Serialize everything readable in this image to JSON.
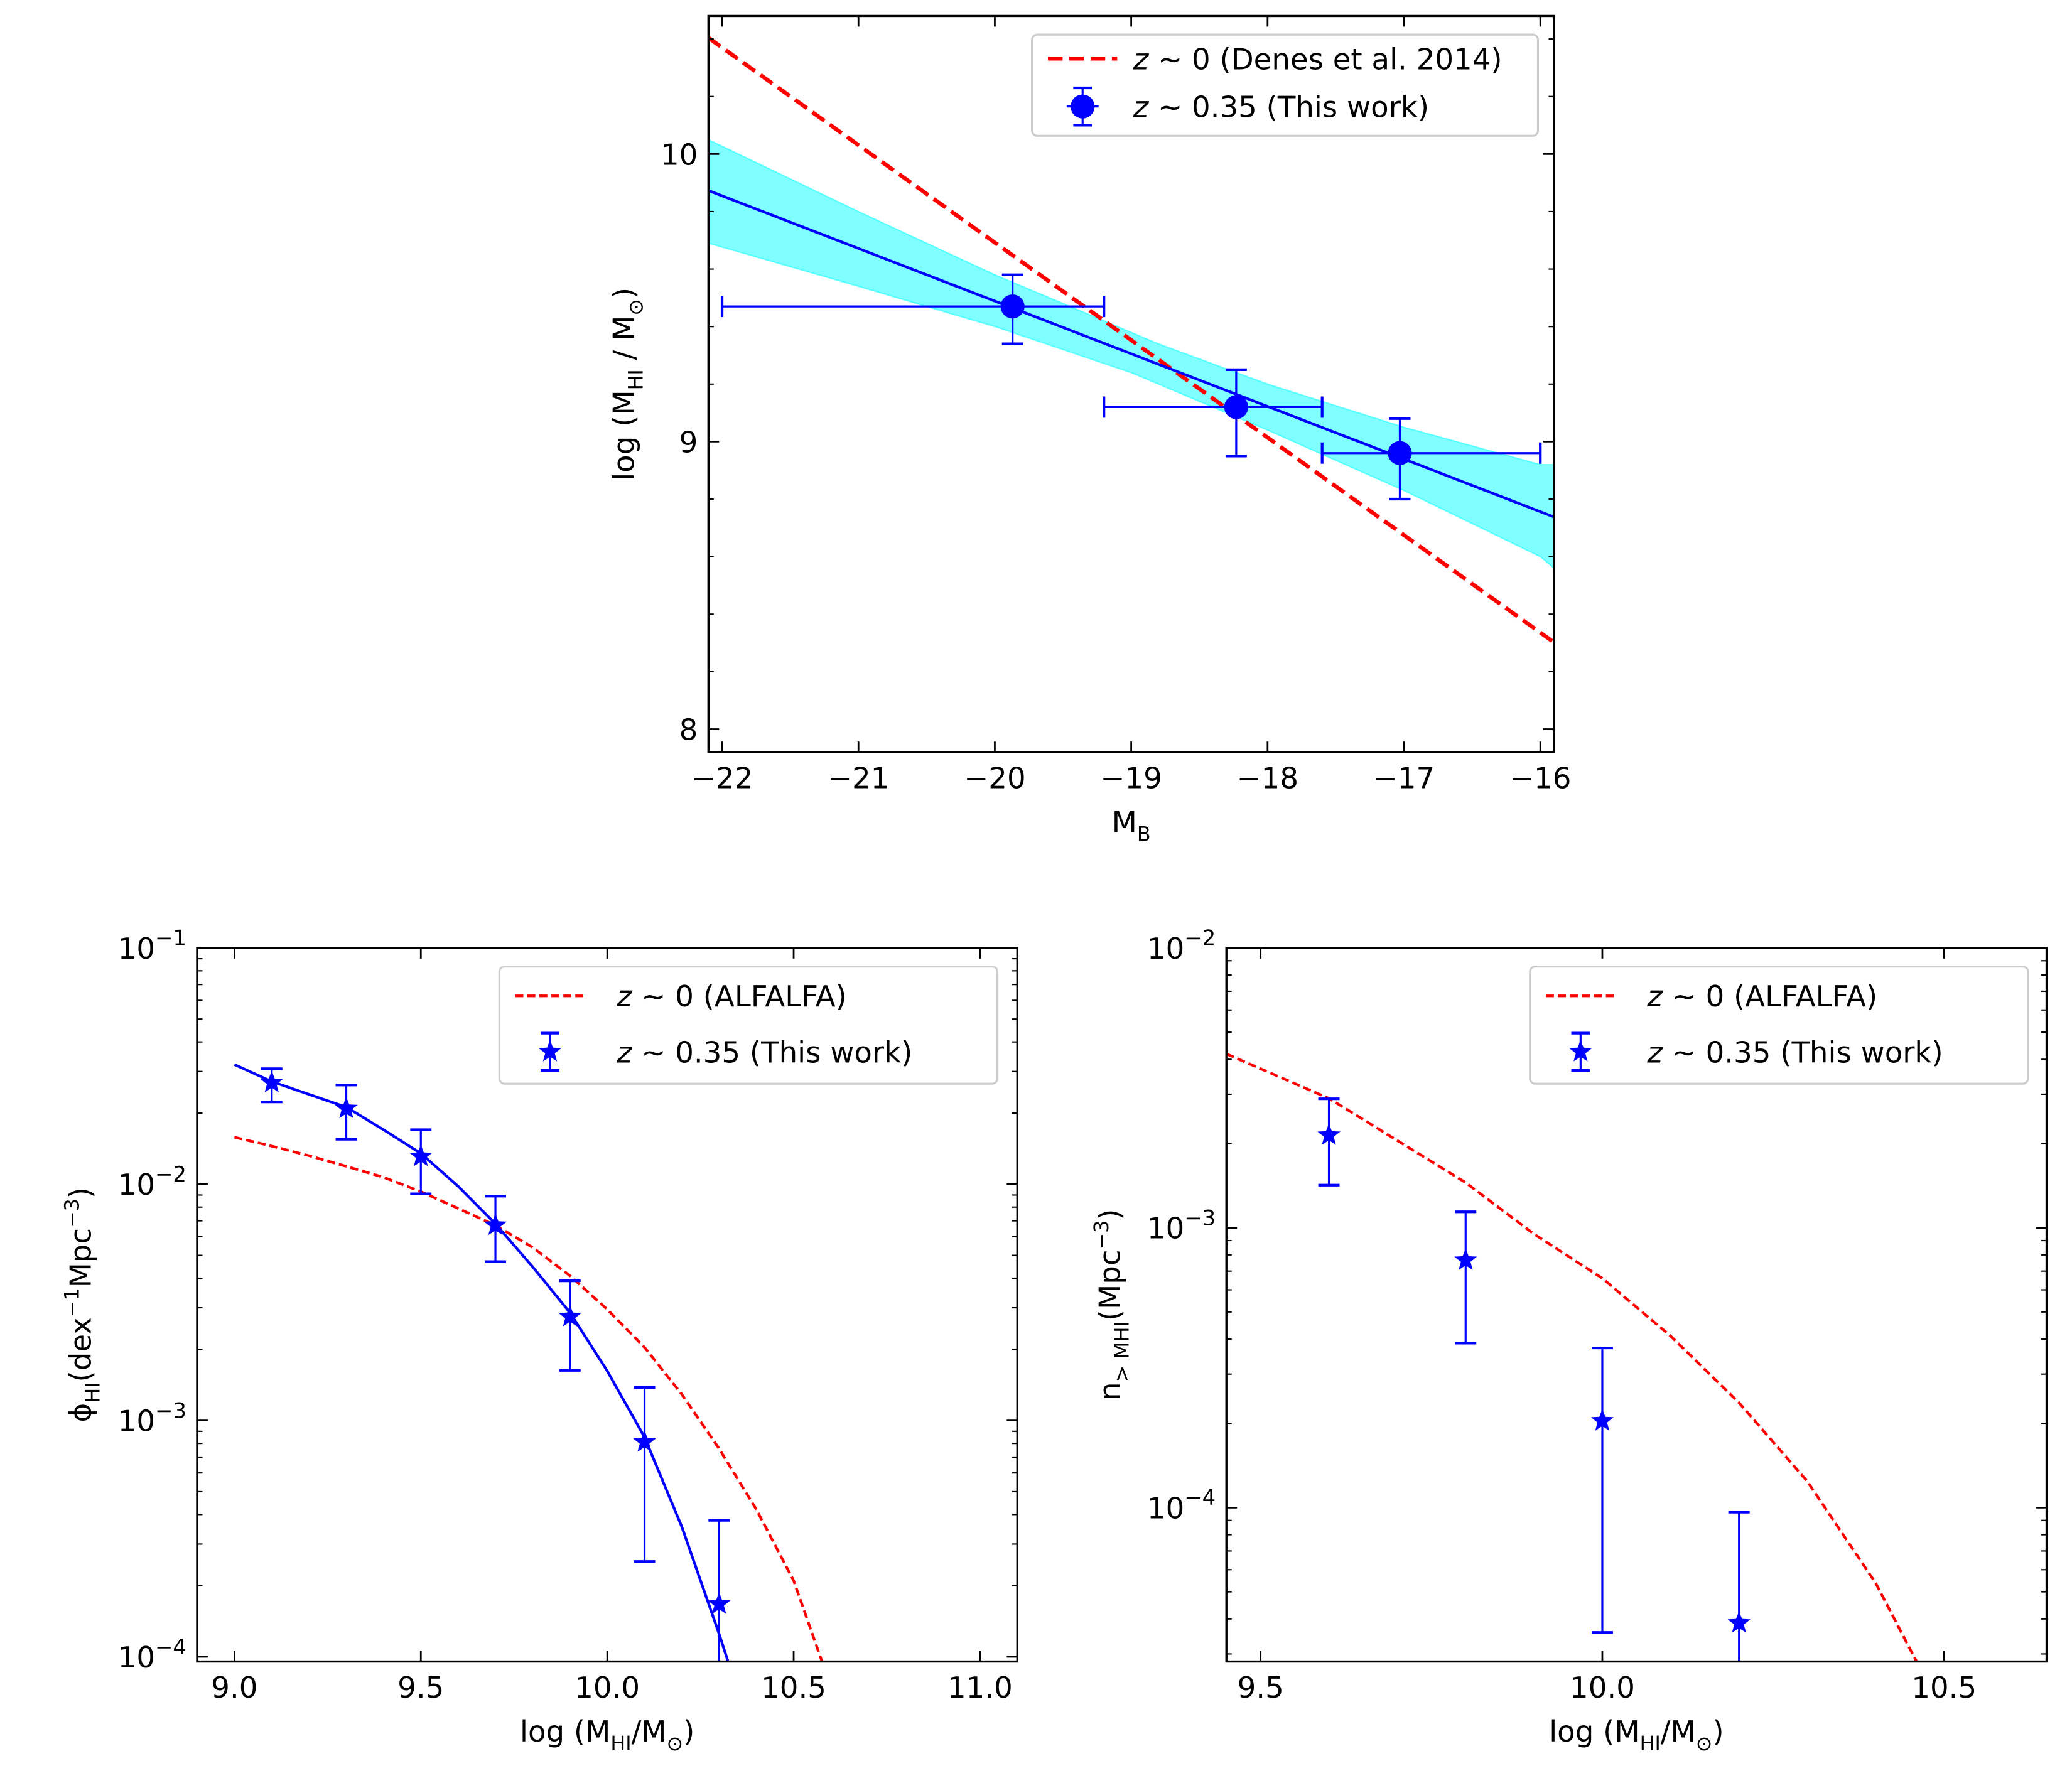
{
  "chart_data": [
    {
      "type": "scatter",
      "panel": "top",
      "xlabel": "M_{B}",
      "ylabel": "log (M_{HI} / M_{⊙})",
      "xlim": [
        -22.1,
        -15.9
      ],
      "ylim": [
        7.92,
        10.48
      ],
      "xscale": "linear",
      "yscale": "linear",
      "xticks": [
        -22,
        -21,
        -20,
        -19,
        -18,
        -17,
        -16
      ],
      "xtick_labels": [
        "−22",
        "−21",
        "−20",
        "−19",
        "−18",
        "−17",
        "−16"
      ],
      "yticks": [
        8,
        9,
        10
      ],
      "ytick_labels": [
        "8",
        "9",
        "10"
      ],
      "grid": false,
      "legend_position": "top-right",
      "series": [
        {
          "name": "z ∼ 0 (Denes et al. 2014)",
          "kind": "dashed-line",
          "color": "#ff0000",
          "x": [
            -22.1,
            -15.9
          ],
          "y": [
            10.404,
            8.302
          ]
        },
        {
          "name": "z ∼ 0.35 (This work)",
          "kind": "errorbar-circle",
          "color": "#0000ff",
          "x": [
            -19.87,
            -18.23,
            -17.03
          ],
          "y": [
            9.47,
            9.12,
            8.96
          ],
          "yerr_high": [
            9.58,
            9.25,
            9.08
          ],
          "yerr_low": [
            9.34,
            8.95,
            8.8
          ],
          "xerr_low": [
            -22.0,
            -19.2,
            -17.6
          ],
          "xerr_high": [
            -19.2,
            -17.6,
            -16.0
          ]
        },
        {
          "kind": "fit-line",
          "color": "#0000ff",
          "x": [
            -22.1,
            -15.9
          ],
          "y": [
            9.873,
            8.738
          ]
        },
        {
          "kind": "confidence-band",
          "color": "#00ffff",
          "x": [
            -22.1,
            -21,
            -20,
            -19,
            -18.8,
            -18,
            -17,
            -16,
            -15.9
          ],
          "upper": [
            10.05,
            9.8,
            9.58,
            9.38,
            9.34,
            9.2,
            9.05,
            8.92,
            8.92
          ],
          "lower": [
            9.69,
            9.54,
            9.4,
            9.24,
            9.2,
            9.04,
            8.83,
            8.6,
            8.56
          ]
        }
      ]
    },
    {
      "type": "scatter",
      "panel": "bottom-left",
      "xlabel": "log (M_{HI}/M_{⊙})",
      "ylabel": "ϕ_{HI}(dex^{−1}Mpc^{−3})",
      "xlim": [
        8.9,
        11.1
      ],
      "ylim_log10": [
        -4.02,
        -1
      ],
      "xscale": "linear",
      "yscale": "log",
      "xticks": [
        9.0,
        9.5,
        10.0,
        10.5,
        11.0
      ],
      "xtick_labels": [
        "9.0",
        "9.5",
        "10.0",
        "10.5",
        "11.0"
      ],
      "yticks_log10": [
        -4,
        -3,
        -2,
        -1
      ],
      "ytick_labels": [
        [
          "10",
          "−4"
        ],
        [
          "10",
          "−3"
        ],
        [
          "10",
          "−2"
        ],
        [
          "10",
          "−1"
        ]
      ],
      "grid": false,
      "legend_position": "top-right",
      "series": [
        {
          "name": "z ∼ 0 (ALFALFA)",
          "kind": "dashed-line",
          "color": "#ff0000",
          "x": [
            9.0,
            9.1,
            9.2,
            9.3,
            9.4,
            9.5,
            9.6,
            9.7,
            9.8,
            9.9,
            10.0,
            10.1,
            10.2,
            10.3,
            10.4,
            10.5,
            10.576
          ],
          "y": [
            0.0158,
            0.0145,
            0.0132,
            0.0119,
            0.0107,
            0.0093,
            0.0079,
            0.0067,
            0.0054,
            0.0041,
            0.00295,
            0.00204,
            0.00129,
            0.00076,
            0.00042,
            0.00021,
            9.55e-05
          ]
        },
        {
          "name": "z ∼ 0.35 (This work)",
          "kind": "errorbar-star",
          "color": "#0000ff",
          "x": [
            9.1,
            9.3,
            9.5,
            9.7,
            9.9,
            10.1,
            10.3
          ],
          "y": [
            0.0269,
            0.0209,
            0.0131,
            0.0067,
            0.00275,
            0.00081,
            0.000167
          ],
          "yerr_high": [
            0.0308,
            0.0263,
            0.017,
            0.0089,
            0.0039,
            0.00138,
            0.000378
          ],
          "yerr_low": [
            0.0223,
            0.0155,
            0.0091,
            0.0047,
            0.00163,
            0.000253,
            null
          ]
        },
        {
          "kind": "fit-line",
          "color": "#0000ff",
          "x": [
            9.0,
            9.1,
            9.2,
            9.3,
            9.4,
            9.5,
            9.6,
            9.7,
            9.8,
            9.9,
            10.0,
            10.1,
            10.2,
            10.3,
            10.324
          ],
          "y": [
            0.0321,
            0.0272,
            0.024,
            0.0212,
            0.017,
            0.0135,
            0.0098,
            0.0068,
            0.00447,
            0.00286,
            0.00162,
            0.00085,
            0.000355,
            0.000125,
            9.55e-05
          ]
        }
      ]
    },
    {
      "type": "scatter",
      "panel": "bottom-right",
      "xlabel": "log (M_{HI}/M_{⊙})",
      "ylabel": "n_{> MHI}(Mpc^{−3})",
      "xlim": [
        9.45,
        10.65
      ],
      "ylim_log10": [
        -4.55,
        -2
      ],
      "xscale": "linear",
      "yscale": "log",
      "xticks": [
        9.5,
        10.0,
        10.5
      ],
      "xtick_labels": [
        "9.5",
        "10.0",
        "10.5"
      ],
      "yticks_log10": [
        -4,
        -3,
        -2
      ],
      "ytick_labels": [
        [
          "10",
          "−4"
        ],
        [
          "10",
          "−3"
        ],
        [
          "10",
          "−2"
        ]
      ],
      "grid": false,
      "legend_position": "top-right",
      "series": [
        {
          "name": "z ∼ 0 (ALFALFA)",
          "kind": "dashed-line",
          "color": "#ff0000",
          "x": [
            9.45,
            9.6,
            9.7,
            9.8,
            9.9,
            10.0,
            10.1,
            10.2,
            10.3,
            10.4,
            10.46
          ],
          "y": [
            0.00418,
            0.0029,
            0.00205,
            0.00145,
            0.00095,
            0.00066,
            0.00041,
            0.000237,
            0.000124,
            5.37e-05,
            2.81e-05
          ]
        },
        {
          "name": "z ∼ 0.35 (This work)",
          "kind": "errorbar-star",
          "color": "#0000ff",
          "x": [
            9.6,
            9.8,
            10.0,
            10.2
          ],
          "y": [
            0.00214,
            0.000765,
            0.000204,
            3.87e-05
          ],
          "yerr_high": [
            0.00289,
            0.00114,
            0.000372,
            9.63e-05
          ],
          "yerr_low": [
            0.00142,
            0.000387,
            3.58e-05,
            null
          ]
        }
      ]
    }
  ]
}
